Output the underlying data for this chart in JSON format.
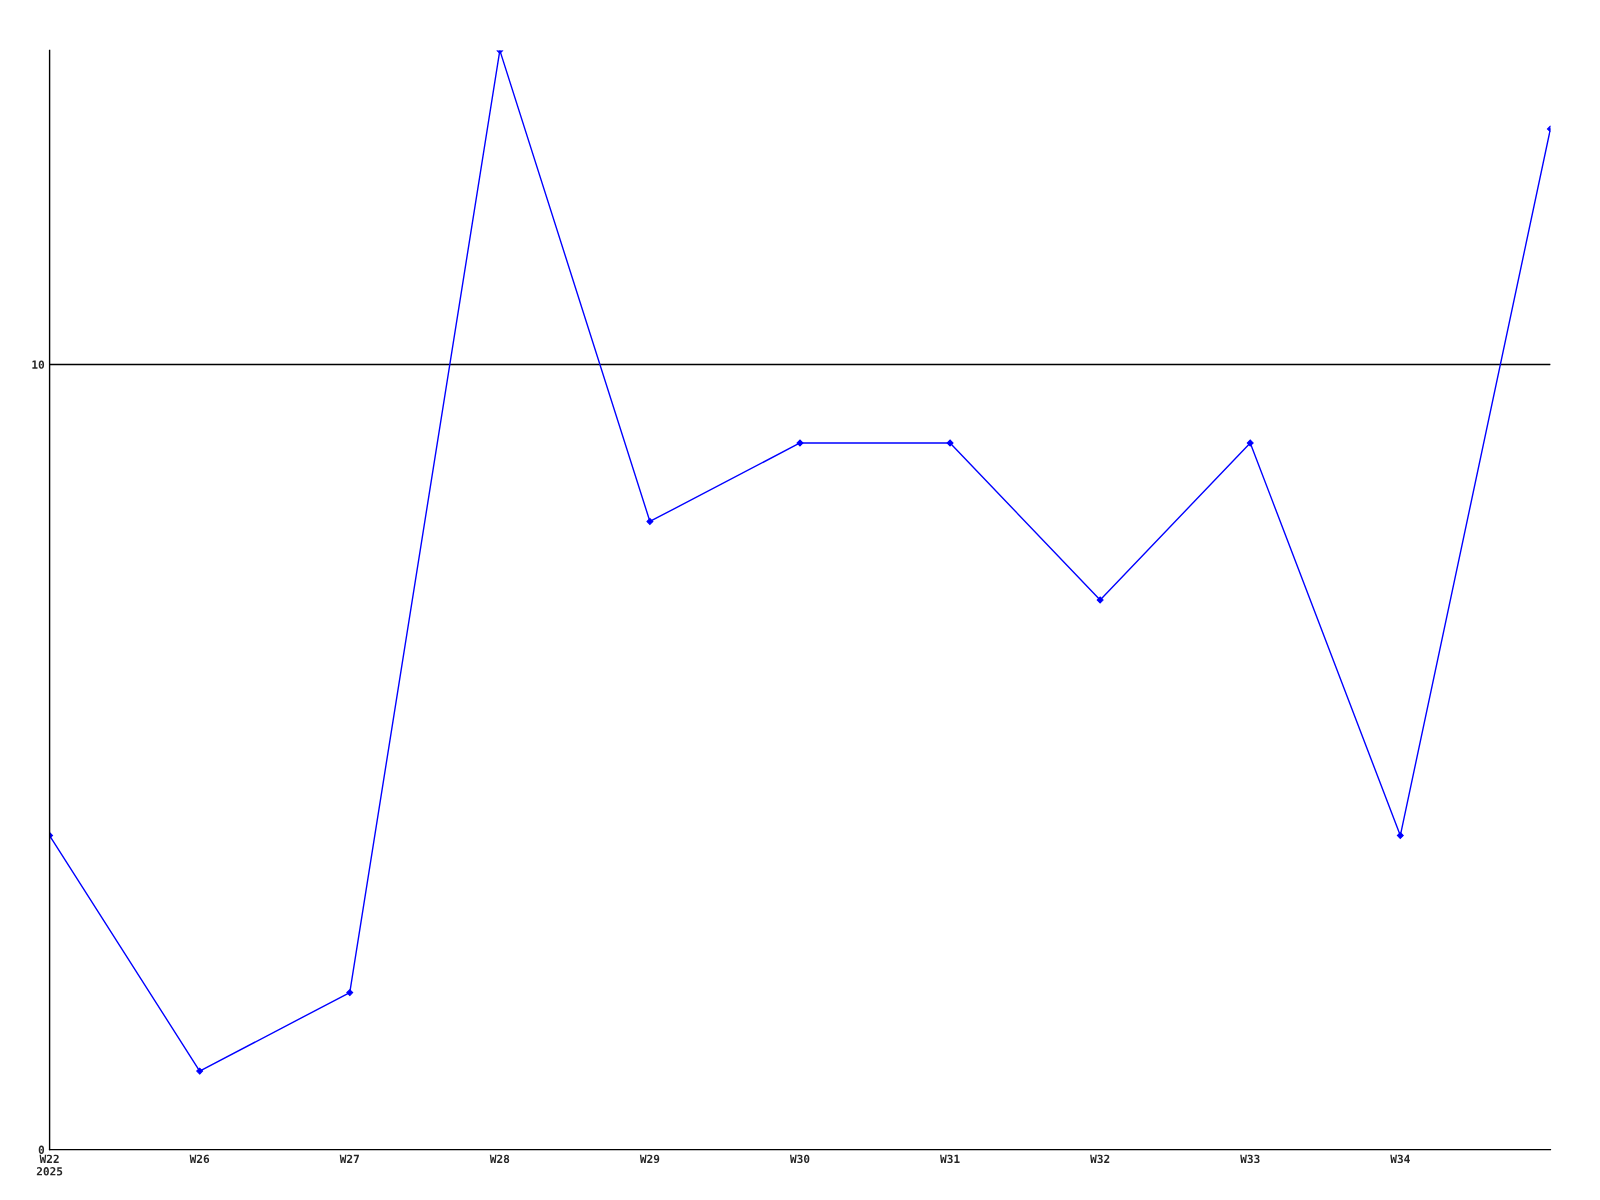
{
  "chart_data": {
    "type": "line",
    "categories": [
      "W22\n2025",
      "W26",
      "W27",
      "W28",
      "W29",
      "W30",
      "W31",
      "W32",
      "W33",
      "W34",
      null
    ],
    "series": [
      {
        "color": "#0000ff",
        "values": [
          4,
          1,
          2,
          14,
          8,
          9,
          9,
          7,
          9,
          4,
          13
        ]
      }
    ],
    "ylim": [
      0,
      14
    ],
    "yticks": [
      0,
      10
    ],
    "grid": "y",
    "marker": "diamond",
    "line_style": "solid"
  }
}
